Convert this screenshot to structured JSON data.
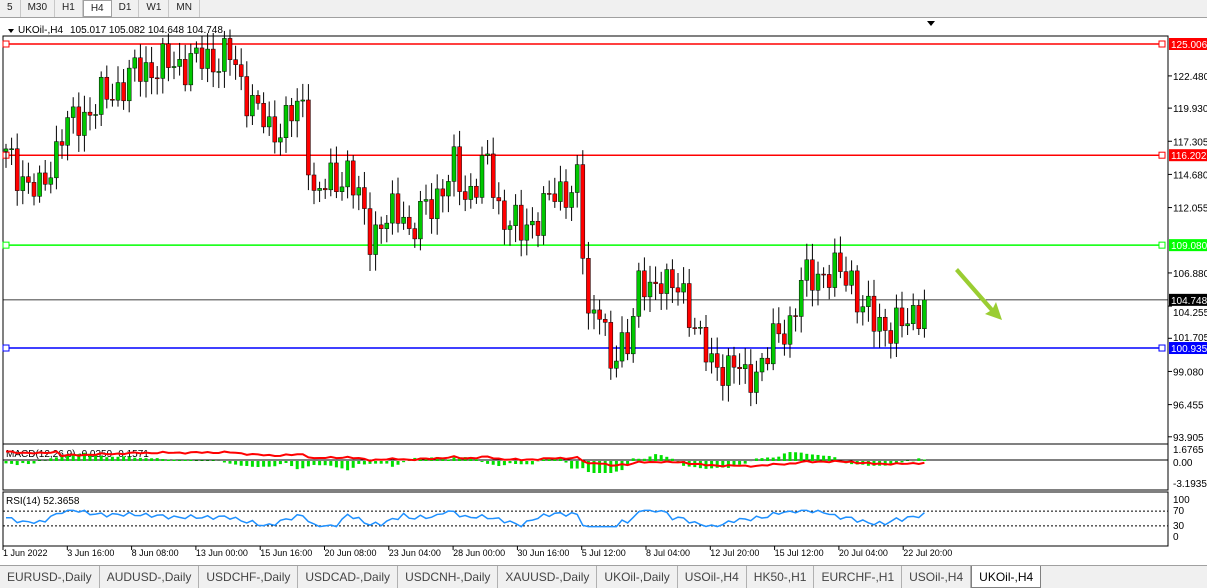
{
  "timeframes": [
    "5",
    "M30",
    "H1",
    "H4",
    "D1",
    "W1",
    "MN"
  ],
  "active_timeframe": "H4",
  "chart_header": {
    "symbol": "UKOil-,H4",
    "ohlc": "105.017 105.082 104.648 104.748"
  },
  "tabs": [
    "EURUSD-,Daily",
    "AUDUSD-,Daily",
    "USDCHF-,Daily",
    "USDCAD-,Daily",
    "USDCNH-,Daily",
    "XAUUSD-,Daily",
    "UKOil-,Daily",
    "USOil-,H4",
    "HK50-,H1",
    "EURCHF-,H1",
    "USOil-,H4",
    "UKOil-,H4"
  ],
  "active_tab": "UKOil-,H4",
  "colors": {
    "bull": "#00c800",
    "bear": "#ff0000",
    "resistance": "#ff0000",
    "support_green": "#00ff00",
    "support_blue": "#0000ff",
    "macd_hist": "#00e000",
    "macd_signal": "#ff0000",
    "rsi": "#1e90ff",
    "arrow": "#9acd32"
  },
  "chart_data": {
    "type": "candlestick",
    "price_axis": {
      "min": 93.905,
      "max": 125.006,
      "ticks": [
        "122.480",
        "119.930",
        "117.305",
        "114.680",
        "112.055",
        "106.880",
        "104.255",
        "101.705",
        "99.080",
        "96.455",
        "93.905"
      ]
    },
    "horizontal_lines": [
      {
        "price": "125.006",
        "color": "#ff0000"
      },
      {
        "price": "116.202",
        "color": "#ff0000"
      },
      {
        "price": "109.080",
        "color": "#00ff00"
      },
      {
        "price": "100.935",
        "color": "#0000ff"
      }
    ],
    "current_price": "104.748",
    "time_labels": [
      "1 Jun 2022",
      "3 Jun 16:00",
      "8 Jun 08:00",
      "13 Jun 00:00",
      "15 Jun 16:00",
      "20 Jun 08:00",
      "23 Jun 04:00",
      "28 Jun 00:00",
      "30 Jun 16:00",
      "5 Jul 12:00",
      "8 Jul 04:00",
      "12 Jul 20:00",
      "15 Jul 12:00",
      "20 Jul 04:00",
      "22 Jul 20:00"
    ],
    "close_path": [
      [
        0,
        116
      ],
      [
        6,
        113
      ],
      [
        10,
        118
      ],
      [
        24,
        123
      ],
      [
        40,
        124
      ],
      [
        42,
        122
      ],
      [
        47,
        118
      ],
      [
        53,
        120
      ],
      [
        55,
        113
      ],
      [
        61,
        115
      ],
      [
        65,
        110
      ],
      [
        71,
        112
      ],
      [
        72,
        110
      ],
      [
        80,
        115
      ],
      [
        82,
        113
      ],
      [
        86,
        115.5
      ],
      [
        88,
        112
      ],
      [
        92,
        110
      ],
      [
        98,
        113
      ],
      [
        102,
        114
      ],
      [
        104,
        103
      ],
      [
        106,
        105
      ],
      [
        108,
        99
      ],
      [
        111,
        102
      ],
      [
        113,
        106
      ],
      [
        115,
        105
      ],
      [
        117,
        107
      ],
      [
        122,
        104
      ],
      [
        124,
        102
      ],
      [
        126,
        99
      ],
      [
        130,
        100
      ],
      [
        132,
        98
      ],
      [
        135,
        100
      ],
      [
        140,
        103
      ],
      [
        142,
        106
      ],
      [
        146,
        107
      ],
      [
        151,
        106.5
      ],
      [
        153,
        104
      ],
      [
        155,
        103
      ],
      [
        160,
        102.5
      ],
      [
        164,
        104.748
      ]
    ],
    "macd": {
      "label": "MACD(12,26,9) -0.0359 -0.1571",
      "ticks": [
        "1.6765",
        "0.00",
        "-3.1935"
      ]
    },
    "rsi": {
      "label": "RSI(14) 52.3658",
      "ticks": [
        "100",
        "70",
        "30",
        "0"
      ],
      "levels": [
        70,
        30
      ]
    }
  }
}
